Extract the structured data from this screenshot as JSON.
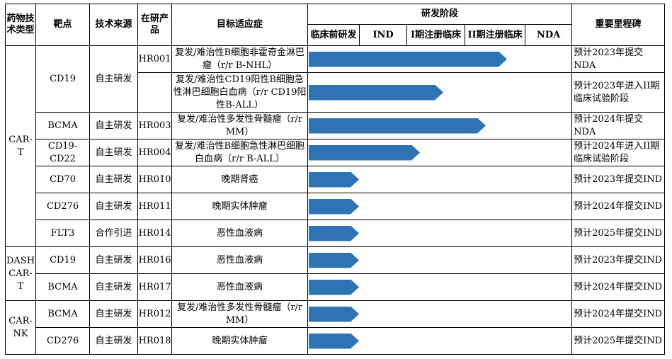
{
  "header": {
    "type_label": "药物技术类型",
    "target_label": "靶点",
    "source_label": "技术来源",
    "product_label": "在研产品",
    "indication_label": "目标适应症",
    "stage_label": "研发阶段",
    "milestone_label": "重要里程碑",
    "stages": [
      "临床前研发",
      "IND",
      "I期注册临床",
      "II期注册临床",
      "NDA"
    ]
  },
  "groups": [
    {
      "type": "CAR-T",
      "rows": 7
    },
    {
      "type": "DASH CAR-T",
      "rows": 2
    },
    {
      "type": "CAR-NK",
      "rows": 2
    }
  ],
  "rows": [
    {
      "target": "CD19",
      "target_rowspan": 2,
      "source": "自主研发",
      "source_rowspan": 2,
      "product": "HR001",
      "indication": "复发/难治性B细胞非霍奇金淋巴瘤（r/r B-NHL）",
      "progress": 0.75,
      "milestone": "预计2023年提交NDA"
    },
    {
      "product": "",
      "indication": "复发/难治性CD19阳性B细胞急性淋巴细胞白血病（r/r CD19阳性B-ALL）",
      "progress": 0.51,
      "milestone": "预计2023年进入II期临床试验阶段"
    },
    {
      "target": "BCMA",
      "source": "自主研发",
      "product": "HR003",
      "indication": "复发/难治性多发性骨髓瘤（r/r MM）",
      "progress": 0.67,
      "milestone": "预计2024年提交NDA"
    },
    {
      "target": "CD19-CD22",
      "source": "自主研发",
      "product": "HR004",
      "indication": "复发/难治性B细胞急性淋巴细胞白血病（r/r B-ALL）",
      "progress": 0.42,
      "milestone": "预计2024年进入II期临床试验阶段"
    },
    {
      "target": "CD70",
      "source": "自主研发",
      "product": "HR010",
      "indication": "晚期肾癌",
      "progress": 0.19,
      "milestone": "预计2023年提交IND"
    },
    {
      "target": "CD276",
      "source": "自主研发",
      "product": "HR011",
      "indication": "晚期实体肿瘤",
      "progress": 0.19,
      "milestone": "预计2024年提交IND"
    },
    {
      "target": "FLT3",
      "source": "合作引进",
      "product": "HR014",
      "indication": "恶性血液病",
      "progress": 0.19,
      "milestone": "预计2025年提交IND"
    },
    {
      "target": "CD19",
      "source": "自主研发",
      "product": "HR016",
      "indication": "恶性血液病",
      "progress": 0.19,
      "milestone": "预计2023年提交IND"
    },
    {
      "target": "BCMA",
      "source": "自主研发",
      "product": "HR017",
      "indication": "恶性血液病",
      "progress": 0.19,
      "milestone": "预计2024年提交IND"
    },
    {
      "target": "BCMA",
      "source": "自主研发",
      "product": "HR012",
      "indication": "复发/难治性多发性骨髓瘤（r/r MM）",
      "progress": 0.19,
      "milestone": "预计2024年提交IND"
    },
    {
      "target": "CD276",
      "source": "自主研发",
      "product": "HR018",
      "indication": "晚期实体肿瘤",
      "progress": 0.19,
      "milestone": "预计2025年提交IND"
    }
  ],
  "colors": {
    "arrow": "#2e74b5"
  }
}
